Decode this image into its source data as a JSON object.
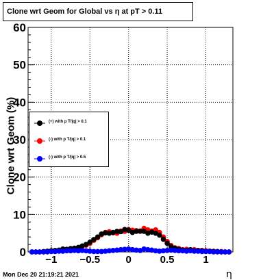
{
  "title": "Clone wrt Geom for Global vs  η at pT > 0.11",
  "timestamp": "Mon Dec 20 21:19:21 2021",
  "chart_data": {
    "type": "scatter",
    "title": "Clone wrt Geom for Global vs  η at pT > 0.11",
    "xlabel": "η",
    "ylabel": "Clone wrt Geom (%)",
    "xlim": [
      -1.3,
      1.35
    ],
    "ylim": [
      0,
      60
    ],
    "x_ticks": [
      -1,
      -0.5,
      0,
      0.5,
      1
    ],
    "x_tick_labels": [
      "−1",
      "−0.5",
      "0",
      "0.5",
      "1"
    ],
    "y_ticks": [
      0,
      10,
      20,
      30,
      40,
      50,
      60
    ],
    "y_tick_labels": [
      "0",
      "10",
      "20",
      "30",
      "40",
      "50",
      "60"
    ],
    "grid": true,
    "legend_position": "middle-left",
    "x": [
      -1.25,
      -1.2,
      -1.15,
      -1.1,
      -1.05,
      -1.0,
      -0.95,
      -0.9,
      -0.85,
      -0.8,
      -0.75,
      -0.7,
      -0.65,
      -0.6,
      -0.55,
      -0.5,
      -0.45,
      -0.4,
      -0.35,
      -0.3,
      -0.25,
      -0.2,
      -0.15,
      -0.1,
      -0.05,
      0.0,
      0.05,
      0.1,
      0.15,
      0.2,
      0.25,
      0.3,
      0.35,
      0.4,
      0.45,
      0.5,
      0.55,
      0.6,
      0.65,
      0.7,
      0.75,
      0.8,
      0.85,
      0.9,
      0.95,
      1.0,
      1.05,
      1.1,
      1.15,
      1.2,
      1.25,
      1.3
    ],
    "series": [
      {
        "name": "(+) with p T/|q| > 0.1",
        "color": "#000000",
        "values": [
          0.0,
          0.0,
          0.0,
          0.1,
          0.2,
          0.3,
          0.4,
          0.5,
          0.8,
          0.7,
          0.9,
          1.0,
          1.2,
          1.6,
          2.0,
          2.6,
          3.3,
          4.0,
          4.8,
          5.1,
          5.0,
          5.2,
          5.5,
          5.4,
          6.0,
          5.8,
          5.2,
          5.5,
          5.6,
          5.5,
          5.0,
          5.3,
          5.0,
          4.5,
          3.4,
          2.3,
          1.4,
          1.0,
          0.7,
          0.5,
          0.4,
          0.6,
          0.3,
          0.4,
          0.3,
          0.2,
          0.2,
          0.1,
          0.1,
          0.0,
          0.0,
          0.0
        ]
      },
      {
        "name": "(-) with p T/|q| > 0.1",
        "color": "#ff0000",
        "values": [
          0.0,
          0.0,
          0.0,
          0.0,
          0.1,
          0.2,
          0.3,
          0.4,
          0.6,
          0.7,
          0.8,
          1.0,
          1.1,
          1.5,
          1.8,
          2.3,
          3.1,
          3.8,
          4.6,
          5.2,
          5.4,
          5.1,
          5.0,
          5.6,
          5.5,
          6.0,
          5.8,
          5.7,
          5.5,
          6.3,
          5.9,
          5.6,
          5.9,
          5.2,
          4.0,
          2.8,
          1.7,
          1.1,
          0.9,
          0.6,
          0.7,
          0.5,
          0.6,
          0.4,
          0.4,
          0.3,
          0.2,
          0.2,
          0.1,
          0.1,
          0.0,
          0.0
        ]
      },
      {
        "name": "(-) with p T/|q| > 0.5",
        "color": "#0000ff",
        "values": [
          0.0,
          0.0,
          0.0,
          0.0,
          0.0,
          0.1,
          0.1,
          0.2,
          0.2,
          0.3,
          0.3,
          0.4,
          0.3,
          0.4,
          0.3,
          0.2,
          0.1,
          0.1,
          0.1,
          0.2,
          0.3,
          0.4,
          0.5,
          0.6,
          0.7,
          0.8,
          0.6,
          0.5,
          0.4,
          0.8,
          0.6,
          0.5,
          0.3,
          0.2,
          0.3,
          0.4,
          0.5,
          0.4,
          0.3,
          0.3,
          0.2,
          0.3,
          0.2,
          0.2,
          0.1,
          0.1,
          0.1,
          0.0,
          0.0,
          0.0,
          0.0,
          0.0
        ]
      }
    ]
  }
}
